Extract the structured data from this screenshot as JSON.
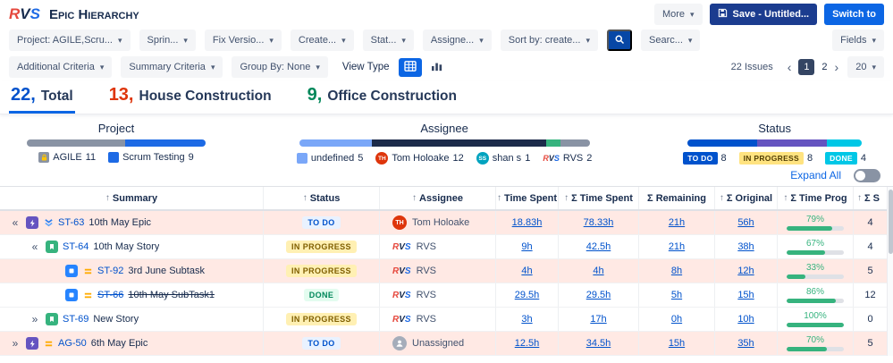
{
  "app": {
    "logo": {
      "r": "R",
      "v": "V",
      "s": "S"
    },
    "title": "Epic Hierarchy"
  },
  "icons": {
    "dropdown_chevron": "▾",
    "sort_arrow": "↑",
    "page_prev": "‹",
    "page_next": "›",
    "search": "magnifier",
    "save": "floppy-disk",
    "epic": "purple-bolt",
    "story": "green-bookmark",
    "subtask": "blue-square",
    "priority_lowest": "blue-double-chevron-down",
    "priority_medium": "orange-equals",
    "grid_view": "table-grid",
    "chart_view": "bar-chart",
    "lock": "gold-lock",
    "person": "grey-person"
  },
  "topbar": {
    "more": "More",
    "save": "Save - Untitled...",
    "switch_to": "Switch to"
  },
  "filters": {
    "row1": [
      {
        "label": "Project: AGILE,Scru..."
      },
      {
        "label": "Sprin..."
      },
      {
        "label": "Fix Versio..."
      },
      {
        "label": "Create..."
      },
      {
        "label": "Stat..."
      },
      {
        "label": "Assigne..."
      },
      {
        "label": "Sort by: create..."
      },
      {
        "label": "Searc..."
      },
      {
        "label": "Fields"
      }
    ],
    "row2": {
      "additional_criteria": "Additional Criteria",
      "summary_criteria": "Summary Criteria",
      "group_by": "Group By: None",
      "view_type": "View Type",
      "issues_count": "22 Issues",
      "page_current": "1",
      "page_next_num": "2",
      "page_size": "20"
    }
  },
  "tabs": [
    {
      "count": "22,",
      "label": "Total"
    },
    {
      "count": "13,",
      "label": "House Construction"
    },
    {
      "count": "9,",
      "label": "Office Construction"
    }
  ],
  "summary": {
    "project": {
      "title": "Project",
      "legend": [
        {
          "name": "AGILE",
          "count": "11",
          "width": "55%"
        },
        {
          "name": "Scrum Testing",
          "count": "9",
          "width": "45%"
        }
      ]
    },
    "assignee": {
      "title": "Assignee",
      "legend": [
        {
          "name": "undefined",
          "count": "5",
          "width": "25%"
        },
        {
          "name": "Tom Holoake",
          "count": "12",
          "width": "60%",
          "initials": "TH"
        },
        {
          "name": "shan s",
          "count": "1",
          "width": "5%",
          "initials": "SS"
        },
        {
          "name": "RVS",
          "count": "2",
          "width": "10%"
        }
      ]
    },
    "status": {
      "title": "Status",
      "legend": [
        {
          "name": "TO DO",
          "count": "8",
          "width": "40%"
        },
        {
          "name": "IN PROGRESS",
          "count": "8",
          "width": "40%"
        },
        {
          "name": "DONE",
          "count": "4",
          "width": "20%"
        }
      ]
    },
    "expand_all": "Expand All"
  },
  "table": {
    "headers": {
      "summary": "Summary",
      "status": "Status",
      "assignee": "Assignee",
      "time_spent": "Time Spent",
      "sum_time_spent": "Σ Time Spent",
      "sum_remaining": "Σ Remaining",
      "sum_original": "Σ Original",
      "time_prog": "Σ Time Prog",
      "sigma": "Σ S"
    },
    "rows": [
      {
        "chevron": "«",
        "key": "ST-63",
        "summary": "10th May Epic",
        "status": "TO DO",
        "assignee": "Tom Holoake",
        "avatar_initials": "TH",
        "time_spent": "18.83h",
        "sum_time_spent": "78.33h",
        "sum_remaining": "21h",
        "sum_original": "56h",
        "progress": "79%",
        "sigma": "4"
      },
      {
        "chevron": "«",
        "key": "ST-64",
        "summary": "10th May Story",
        "status": "IN PROGRESS",
        "assignee": "RVS",
        "time_spent": "9h",
        "sum_time_spent": "42.5h",
        "sum_remaining": "21h",
        "sum_original": "38h",
        "progress": "67%",
        "sigma": "4"
      },
      {
        "chevron": "",
        "key": "ST-92",
        "summary": "3rd June Subtask",
        "status": "IN PROGRESS",
        "assignee": "RVS",
        "time_spent": "4h",
        "sum_time_spent": "4h",
        "sum_remaining": "8h",
        "sum_original": "12h",
        "progress": "33%",
        "sigma": "5"
      },
      {
        "chevron": "",
        "key": "ST-66",
        "summary": "10th May SubTask1",
        "status": "DONE",
        "assignee": "RVS",
        "time_spent": "29.5h",
        "sum_time_spent": "29.5h",
        "sum_remaining": "5h",
        "sum_original": "15h",
        "progress": "86%",
        "sigma": "12"
      },
      {
        "chevron": "»",
        "key": "ST-69",
        "summary": "New Story",
        "status": "IN PROGRESS",
        "assignee": "RVS",
        "time_spent": "3h",
        "sum_time_spent": "17h",
        "sum_remaining": "0h",
        "sum_original": "10h",
        "progress": "100%",
        "sigma": "0"
      },
      {
        "chevron": "»",
        "key": "AG-50",
        "summary": "6th May Epic",
        "status": "TO DO",
        "assignee": "Unassigned",
        "time_spent": "12.5h",
        "sum_time_spent": "34.5h",
        "sum_remaining": "15h",
        "sum_original": "35h",
        "progress": "70%",
        "sigma": "5"
      }
    ]
  }
}
